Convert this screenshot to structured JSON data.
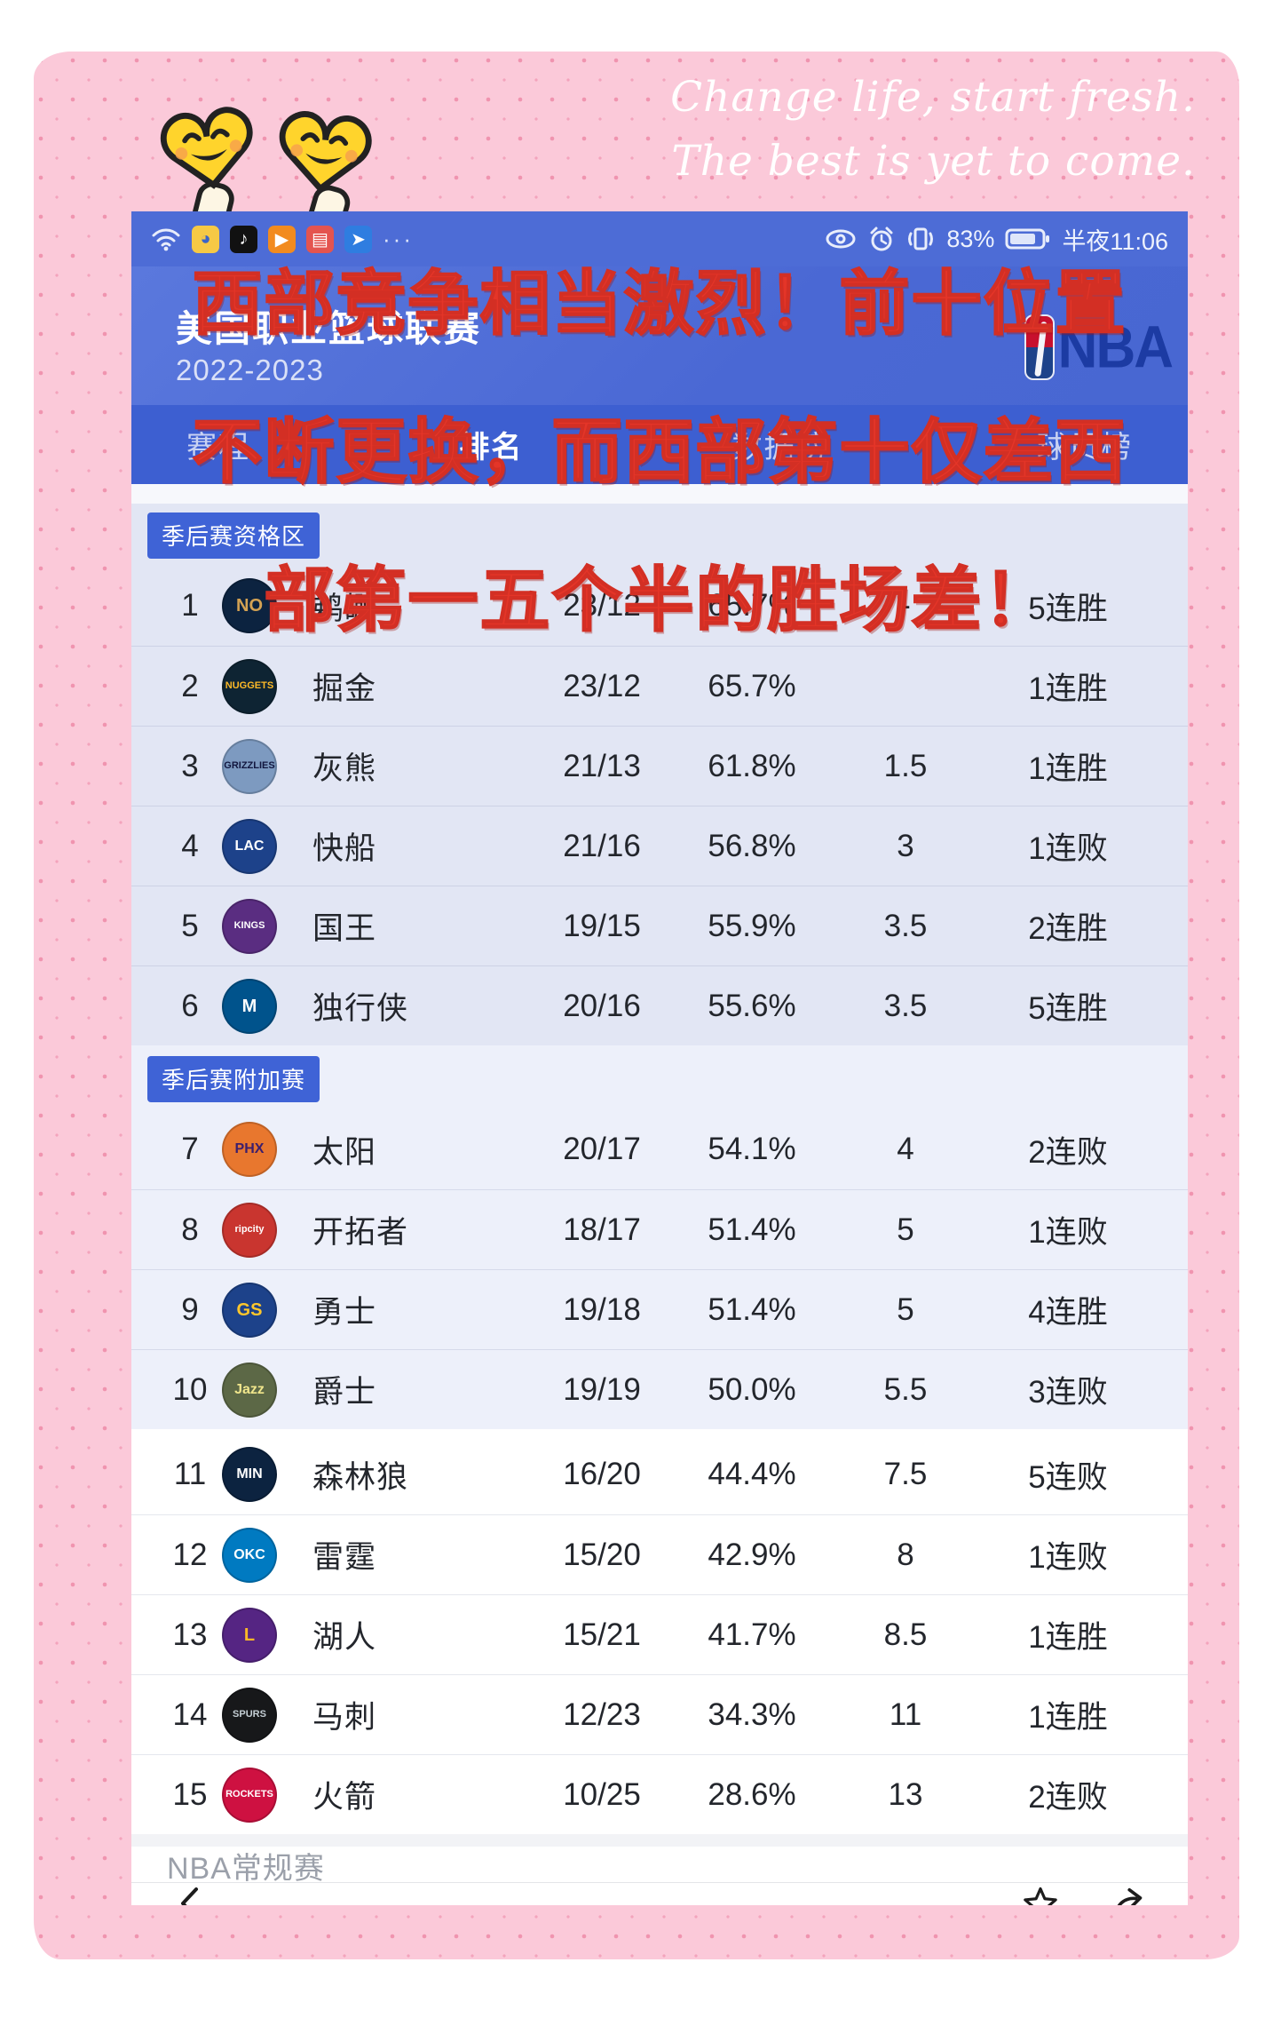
{
  "quote": {
    "line1": "Change life, start fresh.",
    "line2": "The best is yet to come."
  },
  "status_bar": {
    "battery_pct": "83%",
    "time": "半夜11:06",
    "ellipsis": "···"
  },
  "header": {
    "title": "美国职业篮球联赛",
    "season": "2022-2023",
    "league_logo_text": "NBA"
  },
  "tabs": [
    {
      "label": "赛程",
      "active": false
    },
    {
      "label": "排名",
      "active": true
    },
    {
      "label": "数据榜",
      "active": false
    },
    {
      "label": "球员榜",
      "active": false
    }
  ],
  "overlay_caption": {
    "line1": "西部竞争相当激烈！前十位置",
    "line2": "不断更换，而西部第十仅差西",
    "line3": "部第一五个半的胜场差！",
    "color": "#e43528"
  },
  "standings": {
    "sections": [
      {
        "badge": "季后赛资格区",
        "rows": [
          {
            "rank": "1",
            "team": "鹈鹕",
            "logo_text": "NO",
            "logo_bg": "#0c2340",
            "logo_fg": "#d4a253",
            "record": "23/12",
            "win_pct": "65.7%",
            "games_behind": "-",
            "streak": "5连胜"
          },
          {
            "rank": "2",
            "team": "掘金",
            "logo_text": "NUGGETS",
            "logo_bg": "#0e2433",
            "logo_fg": "#fdb927",
            "record": "23/12",
            "win_pct": "65.7%",
            "games_behind": "",
            "streak": "1连胜"
          },
          {
            "rank": "3",
            "team": "灰熊",
            "logo_text": "GRIZZLIES",
            "logo_bg": "#7d9ac0",
            "logo_fg": "#12173f",
            "record": "21/13",
            "win_pct": "61.8%",
            "games_behind": "1.5",
            "streak": "1连胜"
          },
          {
            "rank": "4",
            "team": "快船",
            "logo_text": "LAC",
            "logo_bg": "#1d428a",
            "logo_fg": "#ffffff",
            "record": "21/16",
            "win_pct": "56.8%",
            "games_behind": "3",
            "streak": "1连败"
          },
          {
            "rank": "5",
            "team": "国王",
            "logo_text": "KINGS",
            "logo_bg": "#5a2d81",
            "logo_fg": "#ffffff",
            "record": "19/15",
            "win_pct": "55.9%",
            "games_behind": "3.5",
            "streak": "2连胜"
          },
          {
            "rank": "6",
            "team": "独行侠",
            "logo_text": "M",
            "logo_bg": "#00538c",
            "logo_fg": "#ffffff",
            "record": "20/16",
            "win_pct": "55.6%",
            "games_behind": "3.5",
            "streak": "5连胜"
          }
        ]
      },
      {
        "badge": "季后赛附加赛",
        "rows": [
          {
            "rank": "7",
            "team": "太阳",
            "logo_text": "PHX",
            "logo_bg": "#e8772e",
            "logo_fg": "#3b1e6d",
            "record": "20/17",
            "win_pct": "54.1%",
            "games_behind": "4",
            "streak": "2连败"
          },
          {
            "rank": "8",
            "team": "开拓者",
            "logo_text": "ripcity",
            "logo_bg": "#c9352f",
            "logo_fg": "#ffffff",
            "record": "18/17",
            "win_pct": "51.4%",
            "games_behind": "5",
            "streak": "1连败"
          },
          {
            "rank": "9",
            "team": "勇士",
            "logo_text": "GS",
            "logo_bg": "#1d428a",
            "logo_fg": "#ffc72c",
            "record": "19/18",
            "win_pct": "51.4%",
            "games_behind": "5",
            "streak": "4连胜"
          },
          {
            "rank": "10",
            "team": "爵士",
            "logo_text": "Jazz",
            "logo_bg": "#5c6846",
            "logo_fg": "#f0e68c",
            "record": "19/19",
            "win_pct": "50.0%",
            "games_behind": "5.5",
            "streak": "3连败"
          }
        ]
      },
      {
        "badge": "",
        "rows": [
          {
            "rank": "11",
            "team": "森林狼",
            "logo_text": "MIN",
            "logo_bg": "#0c2340",
            "logo_fg": "#ffffff",
            "record": "16/20",
            "win_pct": "44.4%",
            "games_behind": "7.5",
            "streak": "5连败"
          },
          {
            "rank": "12",
            "team": "雷霆",
            "logo_text": "OKC",
            "logo_bg": "#007ac1",
            "logo_fg": "#ffffff",
            "record": "15/20",
            "win_pct": "42.9%",
            "games_behind": "8",
            "streak": "1连败"
          },
          {
            "rank": "13",
            "team": "湖人",
            "logo_text": "L",
            "logo_bg": "#552583",
            "logo_fg": "#fdb927",
            "record": "15/21",
            "win_pct": "41.7%",
            "games_behind": "8.5",
            "streak": "1连胜"
          },
          {
            "rank": "14",
            "team": "马刺",
            "logo_text": "SPURS",
            "logo_bg": "#17181a",
            "logo_fg": "#c4ced4",
            "record": "12/23",
            "win_pct": "34.3%",
            "games_behind": "11",
            "streak": "1连胜"
          },
          {
            "rank": "15",
            "team": "火箭",
            "logo_text": "ROCKETS",
            "logo_bg": "#ce1141",
            "logo_fg": "#ffffff",
            "record": "10/25",
            "win_pct": "28.6%",
            "games_behind": "13",
            "streak": "2连败"
          }
        ]
      }
    ]
  },
  "footer": {
    "caption": "NBA常规赛"
  }
}
